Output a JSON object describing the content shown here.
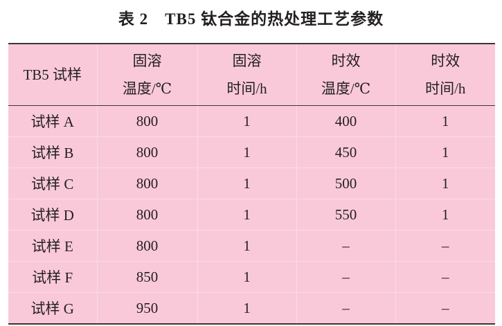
{
  "title": "表 2　TB5 钛合金的热处理工艺参数",
  "table": {
    "headers": [
      [
        "TB5 试样"
      ],
      [
        "固溶",
        "温度/℃"
      ],
      [
        "固溶",
        "时间/h"
      ],
      [
        "时效",
        "温度/℃"
      ],
      [
        "时效",
        "时间/h"
      ]
    ],
    "rows": [
      [
        "试样 A",
        "800",
        "1",
        "400",
        "1"
      ],
      [
        "试样 B",
        "800",
        "1",
        "450",
        "1"
      ],
      [
        "试样 C",
        "800",
        "1",
        "500",
        "1"
      ],
      [
        "试样 D",
        "800",
        "1",
        "550",
        "1"
      ],
      [
        "试样 E",
        "800",
        "1",
        "–",
        "–"
      ],
      [
        "试样 F",
        "850",
        "1",
        "–",
        "–"
      ],
      [
        "试样 G",
        "950",
        "1",
        "–",
        "–"
      ]
    ]
  },
  "colors": {
    "table_background": "#f9c9da",
    "rule": "#3a3536"
  }
}
